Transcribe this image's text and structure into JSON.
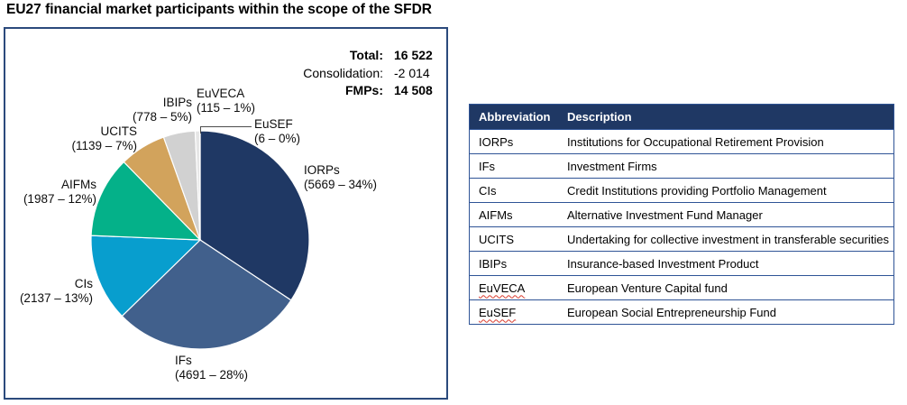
{
  "page": {
    "title": "EU27 financial market participants within the scope of the SFDR"
  },
  "stats": {
    "rows": [
      {
        "label": "Total:",
        "value": "16 522",
        "emphasis": true
      },
      {
        "label": "Consolidation:",
        "value": "-2 014",
        "emphasis": false
      },
      {
        "label": "FMPs:",
        "value": "14 508",
        "emphasis": true
      }
    ]
  },
  "chart_data": {
    "type": "pie",
    "title": "EU27 financial market participants within the scope of the SFDR",
    "total": 16522,
    "start_angle_deg": 0,
    "direction": "clockwise",
    "legend_position": "labels-around-pie",
    "slices": [
      {
        "label": "IORPs",
        "value": 5669,
        "pct": "34%",
        "label_line2": "(5669 – 34%)",
        "color": "#1F3864"
      },
      {
        "label": "IFs",
        "value": 4691,
        "pct": "28%",
        "label_line2": "(4691 – 28%)",
        "color": "#41608C"
      },
      {
        "label": "CIs",
        "value": 2137,
        "pct": "13%",
        "label_line2": "(2137 – 13%)",
        "color": "#089ECE"
      },
      {
        "label": "AIFMs",
        "value": 1987,
        "pct": "12%",
        "label_line2": "(1987 – 12%)",
        "color": "#04B189"
      },
      {
        "label": "UCITS",
        "value": 1139,
        "pct": "7%",
        "label_line2": "(1139 – 7%)",
        "color": "#D2A35C"
      },
      {
        "label": "IBIPs",
        "value": 778,
        "pct": "5%",
        "label_line2": "(778 – 5%)",
        "color": "#D1D1D1"
      },
      {
        "label": "EuVECA",
        "value": 115,
        "pct": "1%",
        "label_line2": "(115 – 1%)",
        "color": "#E6E6E6"
      },
      {
        "label": "EuSEF",
        "value": 6,
        "pct": "0%",
        "label_line2": "(6 – 0%)",
        "color": "#F5F5F5"
      }
    ]
  },
  "table": {
    "headers": [
      "Abbreviation",
      "Description"
    ],
    "rows": [
      {
        "abbr": "IORPs",
        "desc": "Institutions for Occupational Retirement Provision",
        "spellcheck_underline": false
      },
      {
        "abbr": "IFs",
        "desc": "Investment Firms",
        "spellcheck_underline": false
      },
      {
        "abbr": "CIs",
        "desc": "Credit Institutions providing Portfolio Management",
        "spellcheck_underline": false
      },
      {
        "abbr": "AIFMs",
        "desc": "Alternative Investment Fund Manager",
        "spellcheck_underline": false
      },
      {
        "abbr": "UCITS",
        "desc": "Undertaking for collective investment in transferable securities",
        "spellcheck_underline": false
      },
      {
        "abbr": "IBIPs",
        "desc": "Insurance-based Investment Product",
        "spellcheck_underline": false
      },
      {
        "abbr": "EuVECA",
        "desc": "European Venture Capital fund",
        "spellcheck_underline": true
      },
      {
        "abbr": "EuSEF",
        "desc": "European Social Entrepreneurship Fund",
        "spellcheck_underline": true
      }
    ]
  },
  "colors": {
    "panel_border": "#2B4A7C",
    "table_border": "#2F5496",
    "table_header_bg": "#1F3864",
    "table_header_text": "#FFFFFF",
    "leader_line": "#4D4D4D",
    "spellcheck_red": "#D83B2E"
  }
}
